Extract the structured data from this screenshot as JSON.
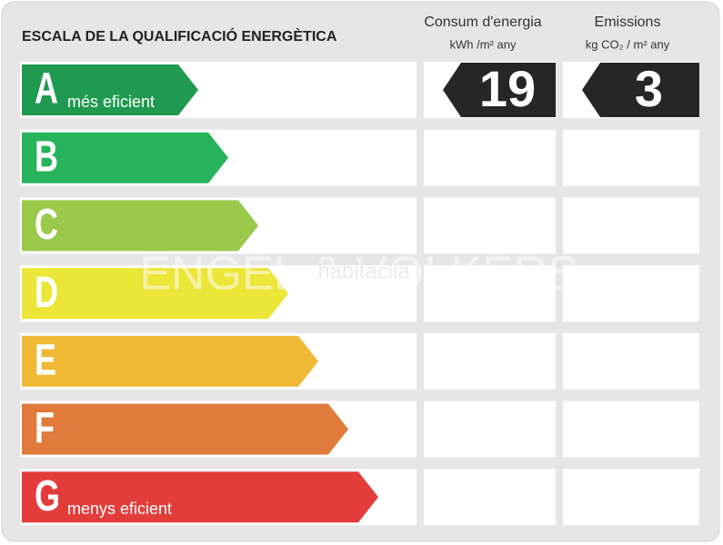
{
  "title": "ESCALA DE LA QUALIFICACIÓ ENERGÈTICA",
  "columns": [
    {
      "title": "Consum d'energia",
      "unit": "kWh /m² any",
      "rating": "A",
      "value": 19
    },
    {
      "title": "Emissions",
      "unit": "kg CO₂ / m² any",
      "rating": "A",
      "value": 3
    }
  ],
  "ratings": [
    {
      "letter": "A",
      "label": "més eficient",
      "color": "#1f9a50"
    },
    {
      "letter": "B",
      "label": null,
      "color": "#26b35b"
    },
    {
      "letter": "C",
      "label": null,
      "color": "#9ac94b"
    },
    {
      "letter": "D",
      "label": null,
      "color": "#ebe637"
    },
    {
      "letter": "E",
      "label": null,
      "color": "#f0b935"
    },
    {
      "letter": "F",
      "label": null,
      "color": "#e07b3b"
    },
    {
      "letter": "G",
      "label": "menys eficient",
      "color": "#e33d3b"
    }
  ],
  "watermark": [
    "ENGEL & VÖLKERS",
    "habitaclia"
  ]
}
